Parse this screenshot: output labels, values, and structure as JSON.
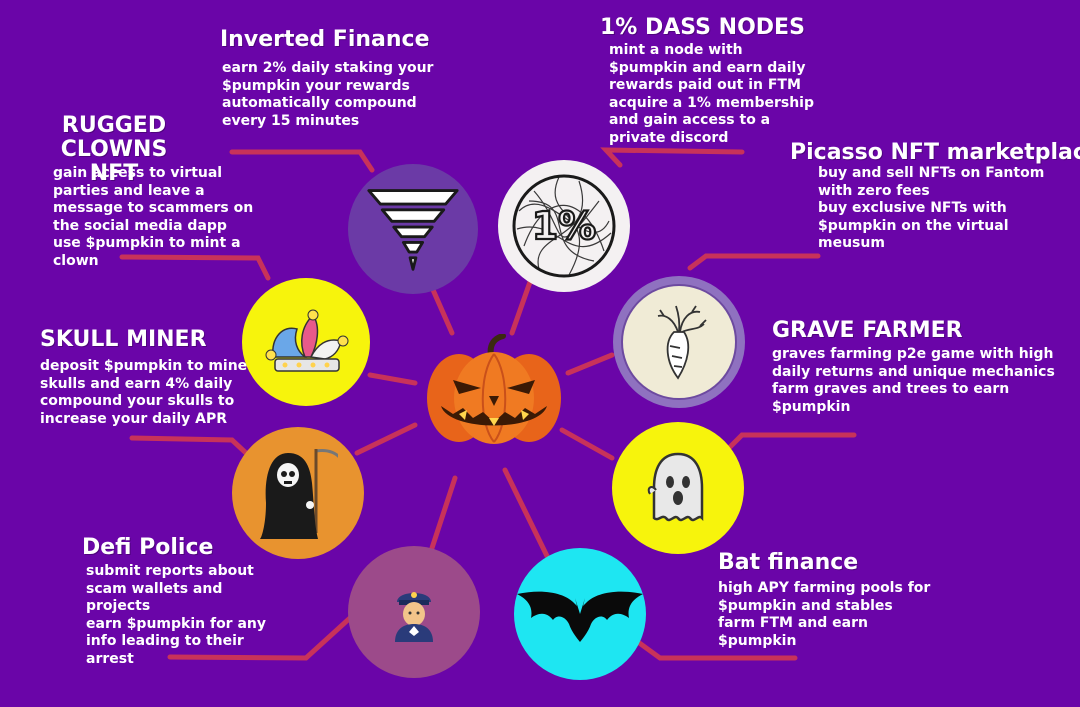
{
  "colors": {
    "background": "#6a05a8",
    "connector": "#c8325a",
    "text": "#ffffff"
  },
  "center": {
    "icon": "jack-o-lantern-icon"
  },
  "features": {
    "inverted_finance": {
      "title": "Inverted Finance",
      "description": "earn 2% daily staking your\n$pumpkin your rewards\nautomatically compound\nevery 15 minutes",
      "icon": "inverted-pyramid-icon",
      "circle_color": "#6b3aa6"
    },
    "dass_nodes": {
      "title": "1% DASS NODES",
      "description": "mint a node with\n$pumpkin and earn daily\nrewards paid out in FTM\nacquire a 1% membership\nand gain access to a\nprivate discord",
      "icon": "one-percent-icon",
      "icon_text": "1%",
      "circle_color": "#f4f1f2"
    },
    "rugged_clowns": {
      "title": "RUGGED\nCLOWNS NFT",
      "description": "gain access to virtual\nparties and leave a\nmessage to scammers on\nthe social media dapp\nuse $pumpkin to mint a\nclown",
      "icon": "jester-hat-icon",
      "circle_color": "#f7f40c"
    },
    "picasso": {
      "title": "Picasso NFT marketplace",
      "description": "buy and sell NFTs on Fantom\nwith zero fees\nbuy exclusive NFTs with\n$pumpkin on the virtual\nmeusum",
      "icon": "carrot-icon",
      "circle_color": "#f0ebd6",
      "ring_color": "#8f71c0"
    },
    "skull_miner": {
      "title": "SKULL MINER",
      "description": "deposit $pumpkin to mine\nskulls and earn 4% daily\ncompound your skulls to\nincrease your daily APR",
      "icon": "grim-reaper-icon",
      "circle_color": "#e8932f"
    },
    "grave_farmer": {
      "title": "GRAVE FARMER",
      "description": "graves farming p2e game with high\ndaily returns and unique mechanics\nfarm graves and trees to earn\n$pumpkin",
      "icon": "ghost-icon",
      "circle_color": "#f7f40c"
    },
    "defi_police": {
      "title": "Defi Police",
      "description": "submit reports about\nscam wallets and\nprojects\nearn $pumpkin for any\ninfo leading to their\narrest",
      "icon": "police-officer-icon",
      "circle_color": "#9c4a8a"
    },
    "bat_finance": {
      "title": "Bat finance",
      "description": "high APY farming pools for\n$pumpkin and stables\nfarm FTM and earn\n$pumpkin",
      "icon": "bat-icon",
      "circle_color": "#1ee6f2"
    }
  }
}
